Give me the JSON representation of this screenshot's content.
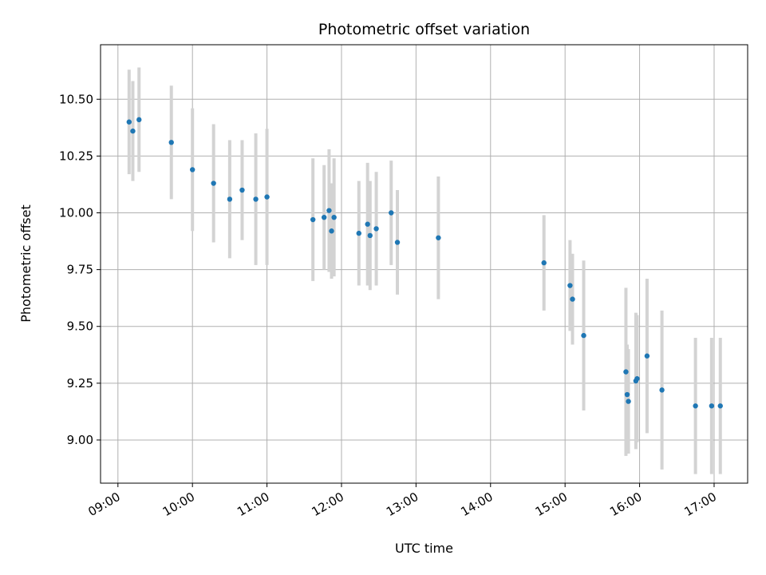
{
  "chart_data": {
    "type": "scatter",
    "title": "Photometric offset variation",
    "xlabel": "UTC time",
    "ylabel": "Photometric offset",
    "x_tick_labels": [
      "09:00",
      "10:00",
      "11:00",
      "12:00",
      "13:00",
      "14:00",
      "15:00",
      "16:00",
      "17:00"
    ],
    "y_tick_labels": [
      "9.00",
      "9.25",
      "9.50",
      "9.75",
      "10.00",
      "10.25",
      "10.50"
    ],
    "x_ticks": [
      "09:00",
      "10:00",
      "11:00",
      "12:00",
      "13:00",
      "14:00",
      "15:00",
      "16:00",
      "17:00"
    ],
    "y_ticks": [
      9.0,
      9.25,
      9.5,
      9.75,
      10.0,
      10.25,
      10.5
    ],
    "xlim": [
      "08:46",
      "17:27"
    ],
    "ylim": [
      8.81,
      10.74
    ],
    "grid": true,
    "colors": {
      "marker": "#1f77b4",
      "errorbar": "#d3d3d3",
      "grid": "#b0b0b0",
      "axes": "#000000"
    },
    "series": [
      {
        "x": [
          "09:09",
          "09:12",
          "09:17",
          "09:43",
          "10:00",
          "10:17",
          "10:30",
          "10:40",
          "10:51",
          "11:00",
          "11:37",
          "11:46",
          "11:50",
          "11:52",
          "11:54",
          "12:14",
          "12:21",
          "12:23",
          "12:28",
          "12:40",
          "12:45",
          "13:18",
          "14:43",
          "15:04",
          "15:06",
          "15:15",
          "15:49",
          "15:50",
          "15:51",
          "15:57",
          "15:58",
          "16:06",
          "16:18",
          "16:45",
          "16:58",
          "17:05"
        ],
        "y": [
          10.4,
          10.36,
          10.41,
          10.31,
          10.19,
          10.13,
          10.06,
          10.1,
          10.06,
          10.07,
          9.97,
          9.98,
          10.01,
          9.92,
          9.98,
          9.91,
          9.95,
          9.9,
          9.93,
          10.0,
          9.87,
          9.89,
          9.78,
          9.68,
          9.62,
          9.46,
          9.3,
          9.2,
          9.17,
          9.26,
          9.27,
          9.37,
          9.22,
          9.15,
          9.15,
          9.15
        ],
        "error": [
          0.23,
          0.22,
          0.23,
          0.25,
          0.27,
          0.26,
          0.26,
          0.22,
          0.29,
          0.3,
          0.27,
          0.23,
          0.27,
          0.21,
          0.26,
          0.23,
          0.27,
          0.24,
          0.25,
          0.23,
          0.23,
          0.27,
          0.21,
          0.2,
          0.2,
          0.33,
          0.37,
          0.22,
          0.23,
          0.3,
          0.28,
          0.34,
          0.35,
          0.3,
          0.3,
          0.3
        ]
      }
    ]
  }
}
